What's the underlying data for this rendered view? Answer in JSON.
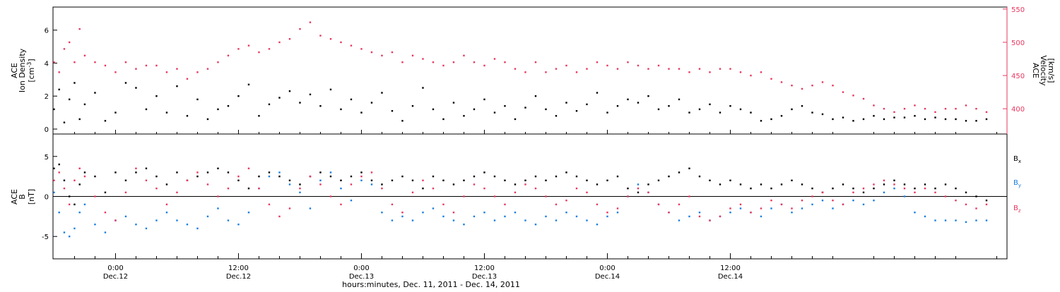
{
  "colors": {
    "black": "#000000",
    "pink": "#e8385f",
    "blue": "#1a7fe0"
  },
  "footer": "hours:minutes, Dec. 11, 2011 - Dec. 14, 2011",
  "time_ticks": [
    {
      "time": "0:00",
      "date": "Dec.12"
    },
    {
      "time": "12:00",
      "date": "Dec.12"
    },
    {
      "time": "0:00",
      "date": "Dec.13"
    },
    {
      "time": "12:00",
      "date": "Dec.13"
    },
    {
      "time": "0:00",
      "date": "Dec.14"
    },
    {
      "time": "12:00",
      "date": "Dec.14"
    }
  ],
  "chart_data": [
    {
      "type": "scatter",
      "panel": "top",
      "x_unit": "hours since 2011-12-11 00:00",
      "xlim": [
        17.9,
        111.0
      ],
      "left_axis": {
        "label_lines": [
          "ACE",
          "Ion Density"
        ],
        "unit": "[cm",
        "unit_sup": "-3",
        "unit_end": "]",
        "ylim": [
          -0.3,
          7.4
        ],
        "ticks": [
          0,
          2,
          4,
          6
        ]
      },
      "right_axis": {
        "label_lines": [
          "ACE",
          "Velocity",
          "[km/s]"
        ],
        "ylim": [
          362,
          553
        ],
        "ticks": [
          400,
          450,
          500,
          550
        ]
      },
      "series": [
        {
          "color_key": "black",
          "axis": "left",
          "x": [
            18.0,
            18.5,
            19.0,
            19.5,
            20.0,
            20.5,
            21.0,
            22.0,
            23.0,
            24.0,
            25.0,
            26.0,
            27.0,
            28.0,
            29.0,
            30.0,
            31.0,
            32.0,
            33.0,
            34.0,
            35.0,
            36.0,
            37.0,
            38.0,
            39.0,
            40.0,
            41.0,
            42.0,
            43.0,
            44.0,
            45.0,
            46.0,
            47.0,
            48.0,
            49.0,
            50.0,
            51.0,
            52.0,
            53.0,
            54.0,
            55.0,
            56.0,
            57.0,
            58.0,
            59.0,
            60.0,
            61.0,
            62.0,
            63.0,
            64.0,
            65.0,
            66.0,
            67.0,
            68.0,
            69.0,
            70.0,
            71.0,
            72.0,
            73.0,
            74.0,
            75.0,
            76.0,
            77.0,
            78.0,
            79.0,
            80.0,
            81.0,
            82.0,
            83.0,
            84.0,
            85.0,
            86.0,
            87.0,
            88.0,
            89.0,
            90.0,
            91.0,
            92.0,
            93.0,
            94.0,
            95.0,
            96.0,
            97.0,
            98.0,
            99.0,
            100.0,
            101.0,
            102.0,
            103.0,
            104.0,
            105.0,
            106.0,
            107.0,
            108.0,
            109.0
          ],
          "y": [
            1.2,
            2.4,
            0.4,
            1.8,
            2.8,
            0.6,
            1.5,
            2.2,
            0.5,
            1.0,
            2.8,
            2.5,
            1.2,
            2.0,
            1.0,
            2.6,
            0.8,
            1.8,
            0.6,
            1.2,
            1.4,
            2.0,
            2.7,
            0.8,
            1.5,
            1.9,
            2.3,
            1.6,
            2.1,
            1.4,
            2.4,
            1.2,
            1.8,
            1.0,
            1.6,
            2.2,
            1.1,
            0.5,
            1.4,
            2.5,
            1.2,
            0.6,
            1.6,
            0.8,
            1.2,
            1.8,
            1.0,
            1.4,
            0.6,
            1.3,
            2.0,
            1.2,
            0.8,
            1.6,
            1.1,
            1.5,
            2.2,
            1.0,
            1.4,
            1.8,
            1.6,
            2.0,
            1.2,
            1.4,
            1.8,
            1.0,
            1.2,
            1.5,
            1.0,
            1.4,
            1.2,
            1.0,
            0.5,
            0.6,
            0.8,
            1.2,
            1.4,
            1.0,
            0.9,
            0.6,
            0.7,
            0.5,
            0.6,
            0.8,
            0.6,
            0.7,
            0.7,
            0.8,
            0.6,
            0.7,
            0.6,
            0.6,
            0.5,
            0.5,
            0.6
          ]
        },
        {
          "color_key": "pink",
          "axis": "right",
          "x": [
            18.0,
            18.5,
            19.0,
            19.5,
            20.0,
            20.5,
            21.0,
            22.0,
            23.0,
            24.0,
            25.0,
            26.0,
            27.0,
            28.0,
            29.0,
            30.0,
            31.0,
            32.0,
            33.0,
            34.0,
            35.0,
            36.0,
            37.0,
            38.0,
            39.0,
            40.0,
            41.0,
            42.0,
            43.0,
            44.0,
            45.0,
            46.0,
            47.0,
            48.0,
            49.0,
            50.0,
            51.0,
            52.0,
            53.0,
            54.0,
            55.0,
            56.0,
            57.0,
            58.0,
            59.0,
            60.0,
            61.0,
            62.0,
            63.0,
            64.0,
            65.0,
            66.0,
            67.0,
            68.0,
            69.0,
            70.0,
            71.0,
            72.0,
            73.0,
            74.0,
            75.0,
            76.0,
            77.0,
            78.0,
            79.0,
            80.0,
            81.0,
            82.0,
            83.0,
            84.0,
            85.0,
            86.0,
            87.0,
            88.0,
            89.0,
            90.0,
            91.0,
            92.0,
            93.0,
            94.0,
            95.0,
            96.0,
            97.0,
            98.0,
            99.0,
            100.0,
            101.0,
            102.0,
            103.0,
            104.0,
            105.0,
            106.0,
            107.0,
            108.0,
            109.0
          ],
          "y": [
            470,
            455,
            490,
            500,
            470,
            520,
            480,
            470,
            465,
            455,
            470,
            460,
            465,
            465,
            455,
            460,
            445,
            455,
            460,
            470,
            480,
            490,
            495,
            485,
            490,
            500,
            505,
            520,
            530,
            510,
            505,
            500,
            495,
            490,
            485,
            480,
            485,
            470,
            480,
            475,
            470,
            465,
            470,
            480,
            470,
            465,
            475,
            470,
            460,
            455,
            470,
            455,
            460,
            465,
            455,
            460,
            470,
            465,
            460,
            470,
            465,
            460,
            465,
            460,
            460,
            455,
            460,
            455,
            460,
            460,
            455,
            450,
            455,
            445,
            440,
            435,
            430,
            435,
            440,
            435,
            425,
            420,
            415,
            405,
            400,
            395,
            400,
            405,
            400,
            395,
            400,
            400,
            405,
            400,
            395
          ]
        }
      ]
    },
    {
      "type": "scatter",
      "panel": "bottom",
      "x_unit": "hours since 2011-12-11 00:00",
      "xlim": [
        17.9,
        111.0
      ],
      "left_axis": {
        "label_lines": [
          "ACE",
          "B",
          "[nT]"
        ],
        "ylim": [
          -7.8,
          7.8
        ],
        "ticks": [
          -5,
          0,
          5
        ]
      },
      "zero_line": true,
      "legend_position": "right",
      "series": [
        {
          "name": "B",
          "name_sub": "x",
          "color_key": "black",
          "x": [
            18.0,
            18.5,
            19.0,
            19.5,
            20.0,
            20.5,
            21.0,
            22.0,
            23.0,
            24.0,
            25.0,
            26.0,
            27.0,
            28.0,
            29.0,
            30.0,
            31.0,
            32.0,
            33.0,
            34.0,
            35.0,
            36.0,
            37.0,
            38.0,
            39.0,
            40.0,
            41.0,
            42.0,
            43.0,
            44.0,
            45.0,
            46.0,
            47.0,
            48.0,
            49.0,
            50.0,
            51.0,
            52.0,
            53.0,
            54.0,
            55.0,
            56.0,
            57.0,
            58.0,
            59.0,
            60.0,
            61.0,
            62.0,
            63.0,
            64.0,
            65.0,
            66.0,
            67.0,
            68.0,
            69.0,
            70.0,
            71.0,
            72.0,
            73.0,
            74.0,
            75.0,
            76.0,
            77.0,
            78.0,
            79.0,
            80.0,
            81.0,
            82.0,
            83.0,
            84.0,
            85.0,
            86.0,
            87.0,
            88.0,
            89.0,
            90.0,
            91.0,
            92.0,
            93.0,
            94.0,
            95.0,
            96.0,
            97.0,
            98.0,
            99.0,
            100.0,
            101.0,
            102.0,
            103.0,
            104.0,
            105.0,
            106.0,
            107.0,
            108.0,
            109.0
          ],
          "y": [
            3.5,
            4.0,
            2.0,
            0.0,
            -1.0,
            1.5,
            3.0,
            2.5,
            0.5,
            3.0,
            2.0,
            3.0,
            3.5,
            2.5,
            1.5,
            3.0,
            2.0,
            2.5,
            3.0,
            3.5,
            3.0,
            2.0,
            1.0,
            2.5,
            3.0,
            2.5,
            2.0,
            1.5,
            2.5,
            3.0,
            2.5,
            2.0,
            2.5,
            3.0,
            2.0,
            1.5,
            2.0,
            2.5,
            2.0,
            1.0,
            2.5,
            2.0,
            1.5,
            2.0,
            2.5,
            3.0,
            2.5,
            2.0,
            1.5,
            2.0,
            2.5,
            2.0,
            2.5,
            3.0,
            2.5,
            2.0,
            1.5,
            2.0,
            2.5,
            1.0,
            0.5,
            1.5,
            2.0,
            2.5,
            3.0,
            3.5,
            2.5,
            2.0,
            1.5,
            2.0,
            1.5,
            1.0,
            1.5,
            1.0,
            1.5,
            2.0,
            1.5,
            1.0,
            0.5,
            1.0,
            1.5,
            1.0,
            0.5,
            1.0,
            1.5,
            2.0,
            1.5,
            1.0,
            1.5,
            1.0,
            1.5,
            1.0,
            0.5,
            0.0,
            -0.5
          ]
        },
        {
          "name": "B",
          "name_sub": "y",
          "color_key": "blue",
          "x": [
            18.0,
            18.5,
            19.0,
            19.5,
            20.0,
            20.5,
            21.0,
            22.0,
            23.0,
            24.0,
            25.0,
            26.0,
            27.0,
            28.0,
            29.0,
            30.0,
            31.0,
            32.0,
            33.0,
            34.0,
            35.0,
            36.0,
            37.0,
            38.0,
            39.0,
            40.0,
            41.0,
            42.0,
            43.0,
            44.0,
            45.0,
            46.0,
            47.0,
            48.0,
            49.0,
            50.0,
            51.0,
            52.0,
            53.0,
            54.0,
            55.0,
            56.0,
            57.0,
            58.0,
            59.0,
            60.0,
            61.0,
            62.0,
            63.0,
            64.0,
            65.0,
            66.0,
            67.0,
            68.0,
            69.0,
            70.0,
            71.0,
            72.0,
            73.0,
            74.0,
            75.0,
            76.0,
            77.0,
            78.0,
            79.0,
            80.0,
            81.0,
            82.0,
            83.0,
            84.0,
            85.0,
            86.0,
            87.0,
            88.0,
            89.0,
            90.0,
            91.0,
            92.0,
            93.0,
            94.0,
            95.0,
            96.0,
            97.0,
            98.0,
            99.0,
            100.0,
            101.0,
            102.0,
            103.0,
            104.0,
            105.0,
            106.0,
            107.0,
            108.0,
            109.0
          ],
          "y": [
            0.5,
            -2.0,
            -4.5,
            -5.0,
            -4.0,
            -2.0,
            -1.0,
            -3.5,
            -4.5,
            -3.0,
            -2.5,
            -3.5,
            -4.0,
            -3.0,
            -2.0,
            -3.0,
            -3.5,
            -4.0,
            -2.5,
            -1.5,
            -3.0,
            -3.5,
            -2.0,
            1.0,
            2.5,
            3.0,
            1.5,
            0.5,
            -1.5,
            2.0,
            3.0,
            1.0,
            -0.5,
            2.0,
            1.5,
            -2.0,
            -3.0,
            -2.5,
            -3.0,
            -2.0,
            -1.5,
            -2.5,
            -3.0,
            -3.5,
            -2.5,
            -2.0,
            -3.0,
            -2.5,
            -2.0,
            -3.0,
            -3.5,
            -2.5,
            -3.0,
            -2.0,
            -2.5,
            -3.0,
            -3.5,
            -2.5,
            -2.0,
            0.0,
            1.5,
            0.5,
            -1.0,
            -2.0,
            -3.0,
            -2.5,
            -2.0,
            -3.0,
            -2.5,
            -2.0,
            -1.5,
            -2.0,
            -2.5,
            -1.5,
            -1.0,
            -2.0,
            -1.5,
            -1.0,
            -0.5,
            -1.5,
            -1.0,
            -0.5,
            -1.0,
            -0.5,
            0.5,
            1.0,
            0.0,
            -2.0,
            -2.5,
            -3.0,
            -3.0,
            -3.0,
            -3.2,
            -3.0,
            -3.0
          ]
        },
        {
          "name": "B",
          "name_sub": "z",
          "color_key": "pink",
          "x": [
            18.0,
            18.5,
            19.0,
            19.5,
            20.0,
            20.5,
            21.0,
            22.0,
            23.0,
            24.0,
            25.0,
            26.0,
            27.0,
            28.0,
            29.0,
            30.0,
            31.0,
            32.0,
            33.0,
            34.0,
            35.0,
            36.0,
            37.0,
            38.0,
            39.0,
            40.0,
            41.0,
            42.0,
            43.0,
            44.0,
            45.0,
            46.0,
            47.0,
            48.0,
            49.0,
            50.0,
            51.0,
            52.0,
            53.0,
            54.0,
            55.0,
            56.0,
            57.0,
            58.0,
            59.0,
            60.0,
            61.0,
            62.0,
            63.0,
            64.0,
            65.0,
            66.0,
            67.0,
            68.0,
            69.0,
            70.0,
            71.0,
            72.0,
            73.0,
            74.0,
            75.0,
            76.0,
            77.0,
            78.0,
            79.0,
            80.0,
            81.0,
            82.0,
            83.0,
            84.0,
            85.0,
            86.0,
            87.0,
            88.0,
            89.0,
            90.0,
            91.0,
            92.0,
            93.0,
            94.0,
            95.0,
            96.0,
            97.0,
            98.0,
            99.0,
            100.0,
            101.0,
            102.0,
            103.0,
            104.0,
            105.0,
            106.0,
            107.0,
            108.0,
            109.0
          ],
          "y": [
            2.0,
            3.0,
            1.0,
            -1.0,
            2.0,
            3.5,
            2.5,
            0.0,
            -2.0,
            -3.0,
            0.5,
            3.5,
            2.0,
            1.0,
            -1.0,
            0.5,
            2.0,
            3.0,
            1.5,
            0.0,
            1.0,
            2.5,
            3.5,
            1.0,
            -1.0,
            -2.5,
            -1.5,
            1.0,
            2.5,
            1.5,
            0.0,
            -1.0,
            1.5,
            2.5,
            3.0,
            1.0,
            -1.0,
            -2.0,
            0.5,
            2.0,
            1.0,
            -1.0,
            -2.0,
            0.0,
            1.5,
            1.0,
            0.0,
            -1.0,
            0.5,
            1.5,
            1.0,
            0.0,
            -1.0,
            -0.5,
            1.0,
            0.5,
            -1.0,
            -2.0,
            -1.5,
            0.0,
            1.0,
            0.5,
            -1.0,
            -2.0,
            -1.0,
            0.0,
            -2.5,
            -3.0,
            -2.5,
            -1.5,
            -1.0,
            -2.0,
            -1.5,
            -0.5,
            -1.0,
            -1.5,
            -0.5,
            0.0,
            0.5,
            -0.5,
            -1.0,
            0.5,
            1.0,
            1.5,
            2.0,
            1.5,
            1.0,
            0.5,
            1.0,
            0.5,
            0.0,
            -0.5,
            -1.0,
            -1.5,
            -1.0
          ]
        }
      ]
    }
  ]
}
